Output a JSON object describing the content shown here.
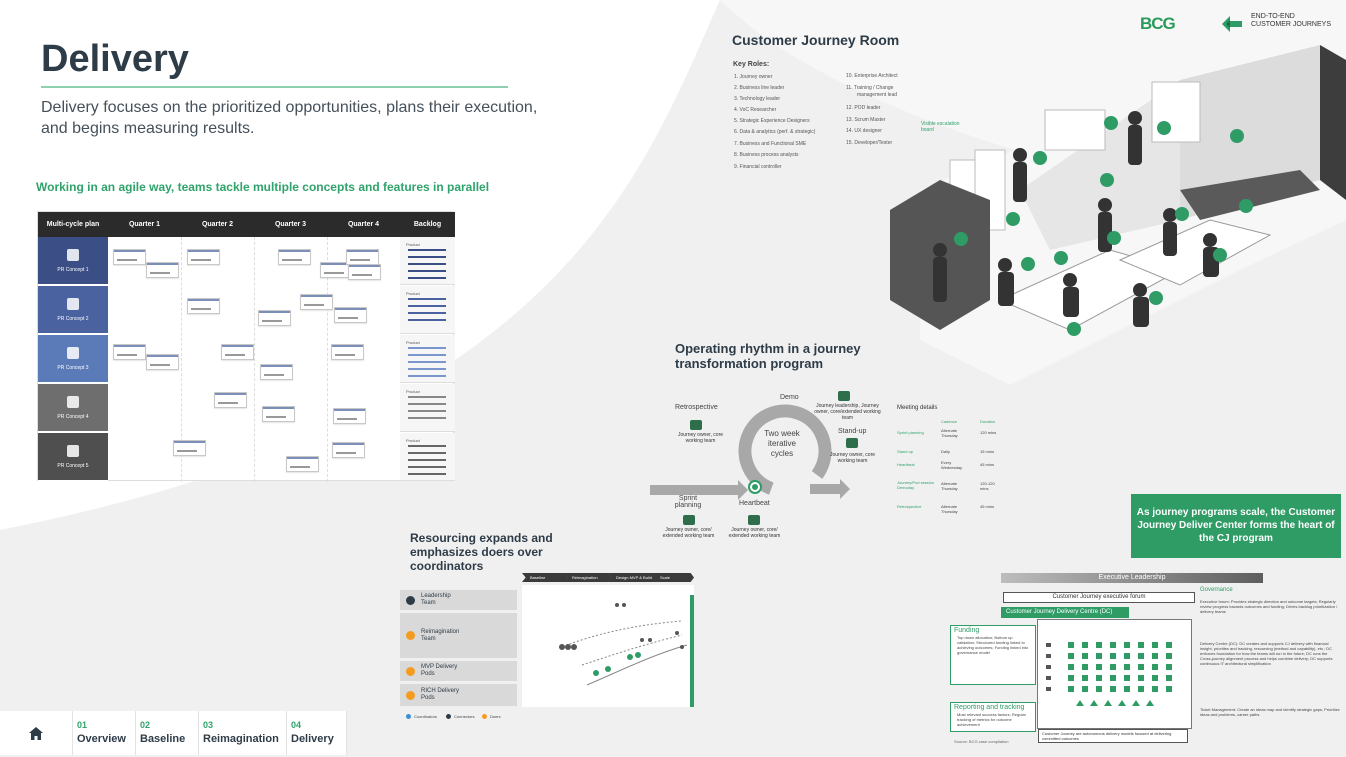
{
  "page": {
    "title": "Delivery",
    "subtitle": "Delivery focuses on the prioritized opportunities, plans their execution, and begins measuring results."
  },
  "agile": {
    "heading": "Working in an agile way, teams tackle multiple concepts and features in parallel",
    "plan": {
      "header_label": "Multi-cycle plan",
      "quarters": [
        "Quarter 1",
        "Quarter 2",
        "Quarter 3",
        "Quarter 4"
      ],
      "backlog_label": "Backlog",
      "rows": [
        {
          "label": "PR Concept 1",
          "color": "#3b4f86",
          "backlog": "Product"
        },
        {
          "label": "PR Concept 2",
          "color": "#4a62a0",
          "backlog": "Product"
        },
        {
          "label": "PR Concept 3",
          "color": "#5b7ab8",
          "backlog": "Product"
        },
        {
          "label": "PR Concept 4",
          "color": "#6e6e6e",
          "backlog": "Product"
        },
        {
          "label": "PR Concept 5",
          "color": "#4f4f4f",
          "backlog": "Product"
        }
      ]
    }
  },
  "nav": {
    "home_icon": "home-icon",
    "items": [
      {
        "num": "01",
        "label": "Overview"
      },
      {
        "num": "02",
        "label": "Baseline"
      },
      {
        "num": "03",
        "label": "Reimagination"
      },
      {
        "num": "04",
        "label": "Delivery"
      }
    ]
  },
  "brand": {
    "bcg": "BCG",
    "e2e_line1": "END-TO-END",
    "e2e_line2": "CUSTOMER JOURNEYS",
    "accent": "#2f9c66"
  },
  "room": {
    "title": "Customer Journey Room",
    "roles_label": "Key Roles:",
    "roles_left": [
      "1. Journey owner",
      "2. Business line leader",
      "3. Technology leader",
      "4. VoC Researcher",
      "5. Strategic Experience Designers",
      "6. Data & analytics (perf. & strategic)",
      "7. Business and Functional SME",
      "8. Business process analysts",
      "9. Financial controller"
    ],
    "roles_right": [
      "10. Enterprise Architect",
      "11. Training / Change",
      "management lead",
      "12. POD leader",
      "13. Scrum Master",
      "14. UX designer",
      "15. Developer/Tester"
    ],
    "escalation_label": "Visible escalation board",
    "markers": [
      "1",
      "2",
      "3",
      "4",
      "5",
      "6",
      "7",
      "8",
      "9",
      "10",
      "11",
      "12",
      "13",
      "14",
      "15"
    ]
  },
  "rhythm": {
    "title": "Operating rhythm in a journey transformation program",
    "center": "Two week iterative cycles",
    "demo": "Demo",
    "demo_who": "Journey leadership, Journey owner, core/extended working team",
    "retro": "Retrospective",
    "retro_who": "Journey owner, core working team",
    "standup": "Stand-up",
    "standup_who": "Journey owner, core working team",
    "sprint": "Sprint planning",
    "sprint_who": "Journey owner, core/ extended working team",
    "heartbeat": "Heartbeat",
    "heartbeat_who": "Journey owner, core/ extended working team",
    "meeting_title": "Meeting details",
    "meeting_headers": [
      "Cadence",
      "Duration"
    ],
    "meetings": [
      {
        "name": "Sprint planning",
        "cadence": "Alternate Thursday",
        "duration": "120 mins"
      },
      {
        "name": "Stand up",
        "cadence": "Daily",
        "duration": "15 mins"
      },
      {
        "name": "Heartbeat",
        "cadence": "Every Wednesday",
        "duration": "45 mins"
      },
      {
        "name": "Journey/Pod session Demoday",
        "cadence": "Alternate Thursday",
        "duration": "120-120 mins"
      },
      {
        "name": "Retrospective",
        "cadence": "Alternate Thursday",
        "duration": "45 mins"
      }
    ]
  },
  "resourcing": {
    "title": "Resourcing expands and emphasizes doers over coordinators",
    "phases": [
      "Baseline",
      "Reimagination",
      "Design MVP & Build",
      "Scale"
    ],
    "rows": [
      {
        "label": "Leadership Team",
        "dot": "#2e3c48"
      },
      {
        "label": "Reimagination Team",
        "dot": "#f39c1f"
      },
      {
        "label": "MVP Delivery Pods",
        "dot": "#f39c1f"
      },
      {
        "label": "RICH Delivery Pods",
        "dot": "#f39c1f"
      }
    ],
    "legend": [
      {
        "label": "Coordinators",
        "color": "#3a8fd6"
      },
      {
        "label": "Connectors",
        "color": "#2e3c48"
      },
      {
        "label": "Doers",
        "color": "#f39c1f"
      }
    ]
  },
  "scale": {
    "callout": "As journey programs scale, the Customer Journey Deliver Center forms the heart of the CJ program",
    "exec_leadership": "Executive Leadership",
    "exec_forum": "Customer Journey executive forum",
    "dc_title": "Customer Journey Delivery Centre (DC)",
    "funding_title": "Funding",
    "funding_text": "Top down allocation; Bottom up validation; Structured funding linked to achieving outcomes; Funding linked into governance model",
    "reporting_title": "Reporting and tracking",
    "reporting_text": "Most relevant success factors; Regular tracking of metrics for outcome achievement",
    "governance_title": "Governance",
    "governance": [
      "Executive forum: Provides strategic direction and outcome targets; Regularly review progress towards outcomes and funding; Drives backlog prioritization / delivery teams",
      "Delivery Centre (DC): DC creates and supports CJ delivery with financial insight, priorities and tracking, resourcing (method and capability), etc.; DC enforces foundation for how the teams will run in the future; DC runs the Cross-journey alignment process and helps combine delivery; DC supports continuous IT architectural simplification",
      "Ticket Management: Create an ideas map and identify strategic gaps; Prioritize ideas and problems, career paths"
    ],
    "cj_footer": "Customer Journey are autonomous delivery models focused at delivering committed outcomes",
    "source": "Source: BCG case compilation"
  }
}
